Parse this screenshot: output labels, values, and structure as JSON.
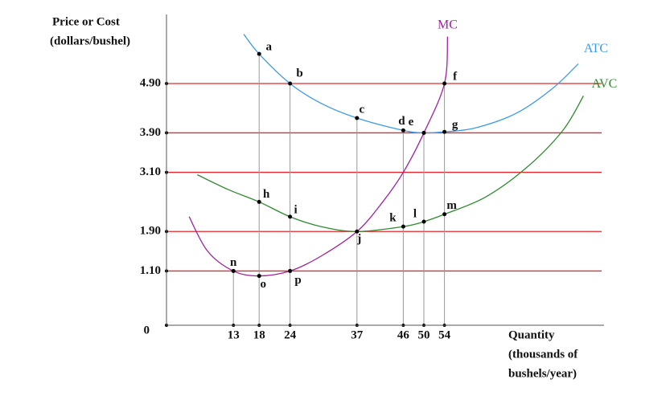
{
  "chart_data": {
    "type": "line",
    "ylabel": [
      "Price or Cost",
      "(dollars/bushel)"
    ],
    "xlabel": [
      "Quantity",
      "(thousands of",
      "bushels/year)"
    ],
    "xlim": [
      0,
      85
    ],
    "ylim": [
      0,
      6.3
    ],
    "xticks": [
      13,
      18,
      24,
      37,
      46,
      50,
      54
    ],
    "yticks": [
      0,
      {
        "value": 1.1,
        "label": "1.10"
      },
      {
        "value": 1.9,
        "label": "1.90"
      },
      {
        "value": 3.1,
        "label": "3.10"
      },
      {
        "value": 3.9,
        "label": "3.90"
      },
      {
        "value": 4.9,
        "label": "4.90"
      }
    ],
    "grid": true,
    "grid_color": "#e8262b",
    "series": [
      {
        "name": "MC",
        "color": "#a0219f",
        "x": [
          4.4,
          8,
          13,
          18,
          24,
          30,
          37,
          42,
          46,
          50,
          54,
          54.6
        ],
        "values": [
          2.2,
          1.5,
          1.1,
          1.0,
          1.1,
          1.4,
          1.9,
          2.5,
          3.1,
          3.9,
          4.9,
          5.85
        ]
      },
      {
        "name": "ATC",
        "color": "#3c9be8",
        "x": [
          15,
          18,
          24,
          30,
          37,
          46,
          50,
          54,
          60,
          68,
          75,
          80
        ],
        "values": [
          5.9,
          5.5,
          4.9,
          4.5,
          4.2,
          3.95,
          3.9,
          3.92,
          4.0,
          4.3,
          4.8,
          5.3
        ]
      },
      {
        "name": "AVC",
        "color": "#2e8b2e",
        "x": [
          6,
          12,
          18,
          24,
          30,
          37,
          46,
          50,
          54,
          62,
          70,
          77,
          81
        ],
        "values": [
          3.05,
          2.75,
          2.5,
          2.2,
          2.0,
          1.9,
          2.0,
          2.1,
          2.25,
          2.6,
          3.2,
          3.95,
          4.65
        ]
      }
    ],
    "points": {
      "labels": [
        "a",
        "b",
        "c",
        "d",
        "e",
        "f",
        "g",
        "h",
        "i",
        "j",
        "k",
        "l",
        "m",
        "n",
        "o",
        "p"
      ],
      "x": [
        18,
        24,
        37,
        46,
        50,
        54,
        54,
        18,
        24,
        37,
        46,
        50,
        54,
        13,
        18,
        24
      ],
      "values": [
        5.5,
        4.9,
        4.2,
        3.95,
        3.9,
        4.9,
        3.92,
        2.5,
        2.2,
        1.9,
        2.0,
        2.1,
        2.25,
        1.1,
        1.0,
        1.1
      ]
    }
  }
}
